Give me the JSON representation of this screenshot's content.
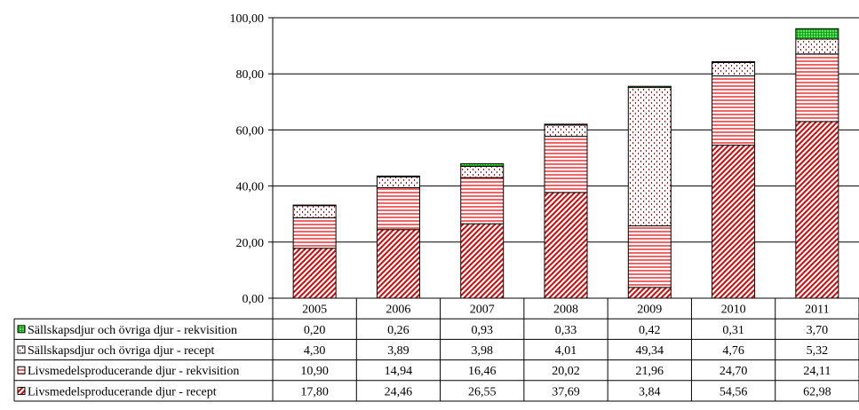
{
  "chart_data": {
    "type": "bar",
    "stacked": true,
    "categories": [
      "2005",
      "2006",
      "2007",
      "2008",
      "2009",
      "2010",
      "2011"
    ],
    "ylim": [
      0,
      100
    ],
    "yticks": [
      "0,00",
      "20,00",
      "40,00",
      "60,00",
      "80,00",
      "100,00"
    ],
    "ytick_values": [
      0,
      20,
      40,
      60,
      80,
      100
    ],
    "grid": true,
    "legend_placement": "data table rows below chart",
    "series": [
      {
        "name": "Livsmedelsproducerande djur - recept",
        "values": [
          17.8,
          24.46,
          26.55,
          37.69,
          3.84,
          54.56,
          62.98
        ],
        "labels": [
          "17,80",
          "24,46",
          "26,55",
          "37,69",
          "3,84",
          "54,56",
          "62,98"
        ],
        "pattern": "diagonal-hatch",
        "color": "#e00000"
      },
      {
        "name": "Livsmedelsproducerande djur - rekvisition",
        "values": [
          10.9,
          14.94,
          16.46,
          20.02,
          21.96,
          24.7,
          24.11
        ],
        "labels": [
          "10,90",
          "14,94",
          "16,46",
          "20,02",
          "21,96",
          "24,70",
          "24,11"
        ],
        "pattern": "horizontal-lines",
        "color": "#e00000"
      },
      {
        "name": "Sällskapsdjur och övriga djur - recept",
        "values": [
          4.3,
          3.89,
          3.98,
          4.01,
          49.34,
          4.76,
          5.32
        ],
        "labels": [
          "4,30",
          "3,89",
          "3,98",
          "4,01",
          "49,34",
          "4,76",
          "5,32"
        ],
        "pattern": "dots",
        "color": "#e00000"
      },
      {
        "name": "Sällskapsdjur och övriga djur - rekvisition",
        "values": [
          0.2,
          0.26,
          0.93,
          0.33,
          0.42,
          0.31,
          3.7
        ],
        "labels": [
          "0,20",
          "0,26",
          "0,93",
          "0,33",
          "0,42",
          "0,31",
          "3,70"
        ],
        "pattern": "grid",
        "color": "#00c000"
      }
    ]
  }
}
